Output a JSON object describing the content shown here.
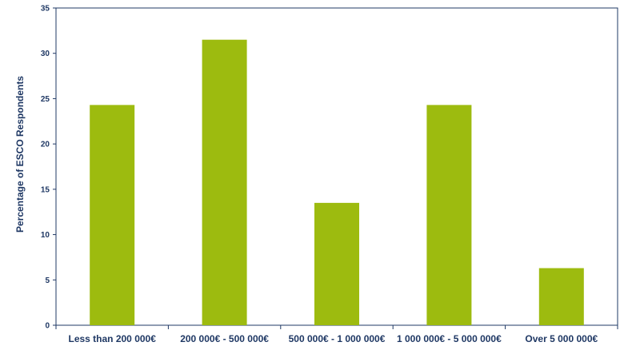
{
  "chart_data": {
    "type": "bar",
    "title": "",
    "xlabel": "",
    "ylabel": "Percentage of ESCO Respondents",
    "categories": [
      "Less than 200 000€",
      "200 000€ - 500 000€",
      "500 000€ - 1 000 000€",
      "1 000 000€ - 5 000 000€",
      "Over 5 000 000€"
    ],
    "values": [
      24.3,
      31.5,
      13.5,
      24.3,
      6.3
    ],
    "ylim": [
      0,
      35
    ],
    "yticks": [
      0,
      5,
      10,
      15,
      20,
      25,
      30,
      35
    ],
    "grid": false,
    "legend": "none",
    "bar_color": "#9dbb0f",
    "axis_color": "#1f3864"
  }
}
